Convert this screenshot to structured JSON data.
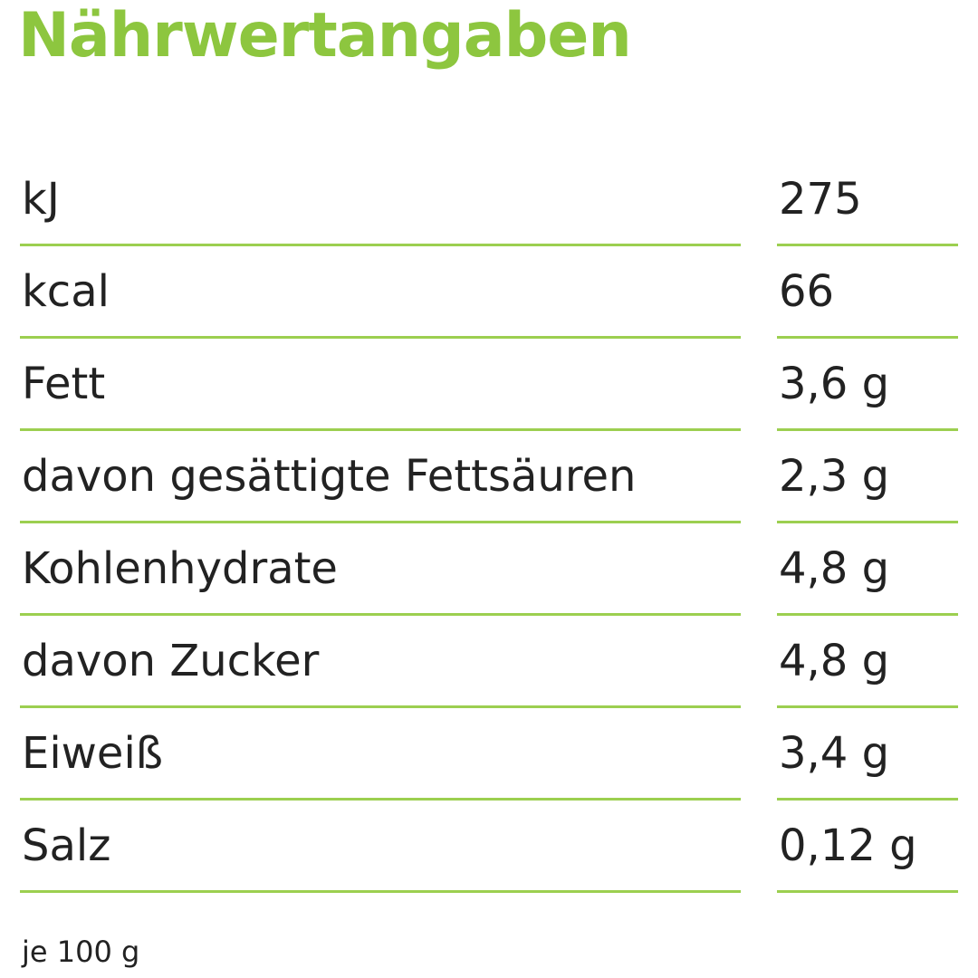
{
  "header": {
    "title": "Nährwertangaben"
  },
  "table": {
    "rows": [
      [
        "kJ",
        "275"
      ],
      [
        "kcal",
        "66"
      ],
      [
        "Fett",
        "3,6 g"
      ],
      [
        "davon gesättigte Fettsäuren",
        "2,3 g"
      ],
      [
        "Kohlenhydrate",
        "4,8 g"
      ],
      [
        "davon Zucker",
        "4,8 g"
      ],
      [
        "Eiweiß",
        "3,4 g"
      ],
      [
        "Salz",
        "0,12 g"
      ]
    ]
  },
  "footnote": "je 100 g"
}
